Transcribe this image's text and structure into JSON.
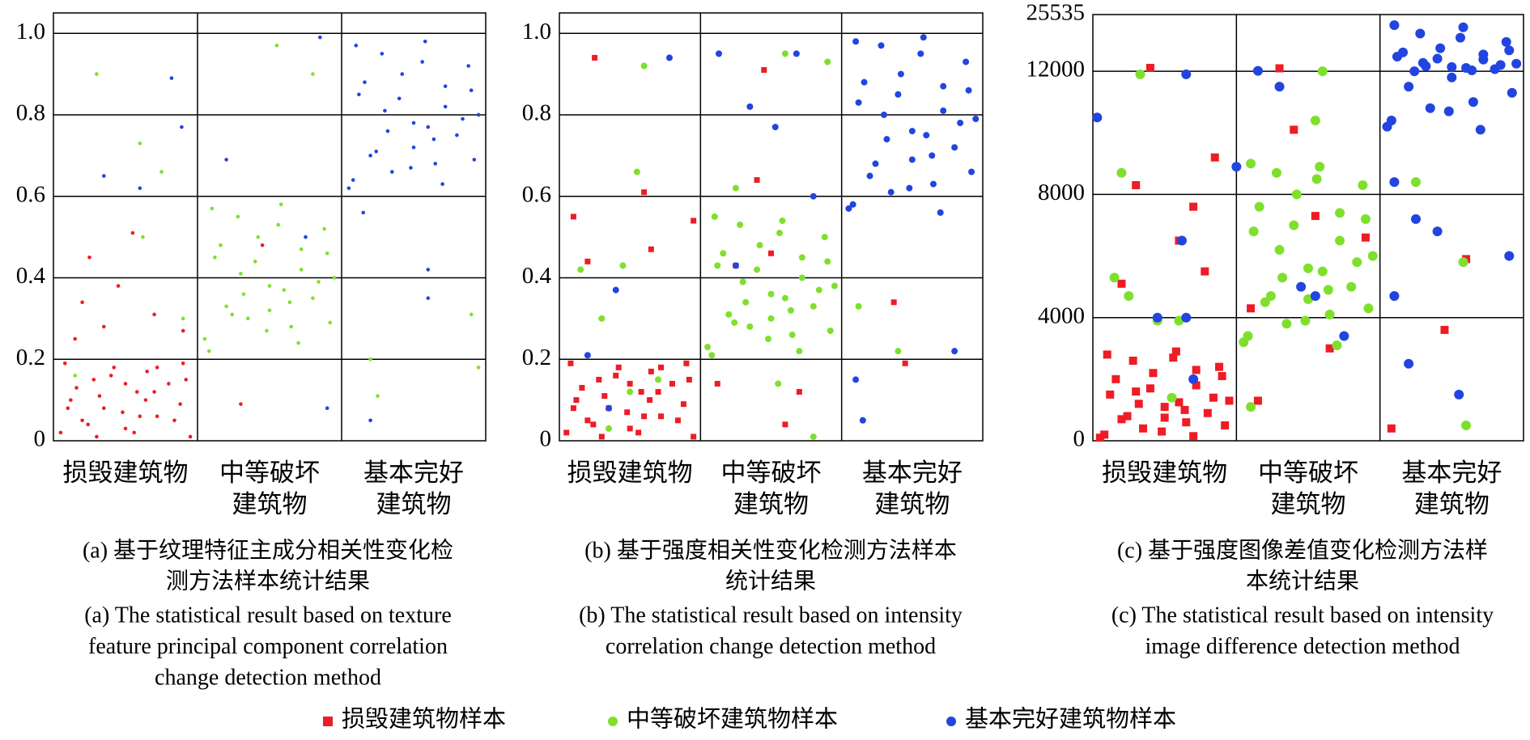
{
  "chart_data": [
    {
      "type": "scatter",
      "categories": [
        [
          "损毁建筑物"
        ],
        [
          "中等破坏",
          "建筑物"
        ],
        [
          "基本完好",
          "建筑物"
        ]
      ],
      "caption_zh": [
        "(a) 基于纹理特征主成分相关性变化检",
        "测方法样本统计结果"
      ],
      "caption_en": [
        "(a) The statistical result based on texture",
        "feature principal component correlation",
        "change detection method"
      ],
      "xlim": [
        0,
        3
      ],
      "ylim": [
        0,
        1.05
      ],
      "yticks": [
        0,
        0.2,
        0.4,
        0.6,
        0.8,
        {
          "value": 1,
          "label": "1.0"
        }
      ],
      "grid": true,
      "series": [
        {
          "name": "损毁建筑物样本",
          "color": "#ee1c25",
          "marker": "circle",
          "x": [
            0.05,
            0.12,
            0.2,
            0.28,
            0.35,
            0.42,
            0.5,
            0.58,
            0.65,
            0.72,
            0.8,
            0.88,
            0.95,
            0.08,
            0.16,
            0.24,
            0.32,
            0.4,
            0.48,
            0.56,
            0.64,
            0.72,
            0.84,
            0.92,
            0.1,
            0.3,
            0.5,
            0.7,
            0.9,
            0.6,
            0.2,
            0.45,
            0.7,
            0.9,
            0.15,
            0.55,
            1.3,
            1.45,
            0.35,
            0.25
          ],
          "values": [
            0.02,
            0.1,
            0.05,
            0.15,
            0.08,
            0.18,
            0.03,
            0.12,
            0.17,
            0.06,
            0.14,
            0.09,
            0.01,
            0.19,
            0.13,
            0.04,
            0.11,
            0.16,
            0.07,
            0.02,
            0.1,
            0.18,
            0.05,
            0.15,
            0.08,
            0.01,
            0.14,
            0.12,
            0.19,
            0.06,
            0.34,
            0.38,
            0.31,
            0.27,
            0.25,
            0.51,
            0.09,
            0.48,
            0.28,
            0.45
          ]
        },
        {
          "name": "中等破坏建筑物样本",
          "color": "#7ee02c",
          "marker": "circle",
          "x": [
            1.05,
            1.12,
            1.2,
            1.28,
            1.35,
            1.42,
            1.5,
            1.58,
            1.65,
            1.72,
            1.8,
            1.88,
            1.95,
            1.08,
            1.16,
            1.24,
            1.32,
            1.4,
            1.48,
            1.56,
            1.64,
            1.72,
            1.84,
            1.92,
            1.1,
            1.3,
            1.5,
            1.7,
            1.9,
            1.6,
            0.3,
            0.6,
            0.75,
            0.62,
            1.55,
            2.9,
            2.95,
            2.2,
            1.8,
            2.25,
            0.15,
            0.9
          ],
          "values": [
            0.25,
            0.45,
            0.33,
            0.55,
            0.3,
            0.5,
            0.38,
            0.58,
            0.28,
            0.42,
            0.35,
            0.52,
            0.4,
            0.22,
            0.48,
            0.31,
            0.36,
            0.44,
            0.27,
            0.53,
            0.34,
            0.47,
            0.39,
            0.29,
            0.57,
            0.41,
            0.32,
            0.24,
            0.46,
            0.37,
            0.9,
            0.73,
            0.66,
            0.5,
            0.97,
            0.31,
            0.18,
            0.2,
            0.9,
            0.11,
            0.16,
            0.3
          ]
        },
        {
          "name": "基本完好建筑物样本",
          "color": "#2244e0",
          "marker": "circle",
          "x": [
            2.05,
            2.12,
            2.2,
            2.28,
            2.35,
            2.42,
            2.5,
            2.58,
            2.65,
            2.72,
            2.8,
            2.88,
            2.95,
            2.08,
            2.16,
            2.24,
            2.32,
            2.4,
            2.48,
            2.56,
            2.64,
            2.72,
            2.84,
            2.92,
            2.1,
            2.3,
            2.5,
            2.7,
            2.9,
            2.6,
            0.82,
            0.35,
            0.89,
            0.6,
            1.2,
            1.85,
            1.9,
            2.6,
            2.2,
            2.6,
            2.15,
            1.75
          ],
          "values": [
            0.62,
            0.85,
            0.7,
            0.95,
            0.66,
            0.9,
            0.78,
            0.98,
            0.68,
            0.82,
            0.75,
            0.92,
            0.8,
            0.64,
            0.88,
            0.71,
            0.76,
            0.84,
            0.67,
            0.93,
            0.74,
            0.87,
            0.79,
            0.69,
            0.97,
            0.81,
            0.72,
            0.63,
            0.86,
            0.77,
            0.89,
            0.65,
            0.77,
            0.62,
            0.69,
            0.99,
            0.08,
            0.35,
            0.05,
            0.42,
            0.56,
            0.5
          ]
        }
      ]
    },
    {
      "type": "scatter",
      "categories": [
        [
          "损毁建筑物"
        ],
        [
          "中等破坏",
          "建筑物"
        ],
        [
          "基本完好",
          "建筑物"
        ]
      ],
      "caption_zh": [
        "(b) 基于强度相关性变化检测方法样本",
        "统计结果"
      ],
      "caption_en": [
        "(b) The statistical result based on intensity",
        "correlation change detection method"
      ],
      "xlim": [
        0,
        3
      ],
      "ylim": [
        0,
        1.05
      ],
      "yticks": [
        0,
        0.2,
        0.4,
        0.6,
        0.8,
        {
          "value": 1,
          "label": "1.0"
        }
      ],
      "grid": true,
      "series": [
        {
          "name": "损毁建筑物样本",
          "color": "#ee1c25",
          "marker": "square",
          "x": [
            0.05,
            0.12,
            0.2,
            0.28,
            0.35,
            0.42,
            0.5,
            0.58,
            0.65,
            0.72,
            0.8,
            0.88,
            0.95,
            0.08,
            0.16,
            0.24,
            0.32,
            0.4,
            0.48,
            0.56,
            0.64,
            0.72,
            0.84,
            0.92,
            0.1,
            0.3,
            0.5,
            0.7,
            0.9,
            0.6,
            0.25,
            0.1,
            0.6,
            0.65,
            0.2,
            0.95,
            1.25,
            1.45,
            1.4,
            1.12,
            1.7,
            1.5,
            2.37,
            2.45,
            1.6
          ],
          "values": [
            0.02,
            0.1,
            0.05,
            0.15,
            0.08,
            0.18,
            0.03,
            0.12,
            0.17,
            0.06,
            0.14,
            0.09,
            0.01,
            0.19,
            0.13,
            0.04,
            0.11,
            0.16,
            0.07,
            0.02,
            0.1,
            0.18,
            0.05,
            0.15,
            0.08,
            0.01,
            0.14,
            0.12,
            0.19,
            0.06,
            0.94,
            0.55,
            0.61,
            0.47,
            0.44,
            0.54,
            0.43,
            0.91,
            0.64,
            0.14,
            0.12,
            0.46,
            0.34,
            0.19,
            0.04
          ]
        },
        {
          "name": "中等破坏建筑物样本",
          "color": "#7ee02c",
          "marker": "circle",
          "x": [
            1.05,
            1.12,
            1.2,
            1.28,
            1.35,
            1.42,
            1.5,
            1.58,
            1.65,
            1.72,
            1.8,
            1.88,
            1.95,
            1.08,
            1.16,
            1.24,
            1.32,
            1.4,
            1.48,
            1.56,
            1.64,
            1.72,
            1.84,
            1.92,
            1.1,
            1.3,
            1.5,
            1.7,
            1.9,
            1.6,
            0.15,
            0.6,
            0.55,
            0.45,
            0.3,
            0.7,
            1.9,
            1.6,
            1.25,
            1.55,
            1.8,
            2.4,
            2.12,
            0.35,
            0.5
          ],
          "values": [
            0.23,
            0.43,
            0.31,
            0.53,
            0.28,
            0.48,
            0.36,
            0.54,
            0.26,
            0.4,
            0.33,
            0.5,
            0.38,
            0.21,
            0.46,
            0.29,
            0.34,
            0.42,
            0.25,
            0.51,
            0.32,
            0.45,
            0.37,
            0.27,
            0.55,
            0.39,
            0.3,
            0.22,
            0.44,
            0.35,
            0.42,
            0.92,
            0.66,
            0.43,
            0.3,
            0.15,
            0.93,
            0.95,
            0.62,
            0.14,
            0.01,
            0.22,
            0.33,
            0.03,
            0.12
          ]
        },
        {
          "name": "基本完好建筑物样本",
          "color": "#2244e0",
          "marker": "circle",
          "x": [
            2.05,
            2.12,
            2.2,
            2.28,
            2.35,
            2.42,
            2.5,
            2.58,
            2.65,
            2.72,
            2.8,
            2.88,
            2.95,
            2.08,
            2.16,
            2.24,
            2.32,
            2.4,
            2.48,
            2.56,
            2.64,
            2.72,
            2.84,
            2.92,
            2.1,
            2.3,
            2.5,
            2.7,
            2.9,
            2.6,
            0.78,
            1.13,
            1.35,
            1.53,
            1.68,
            1.25,
            0.4,
            0.35,
            1.8,
            2.1,
            2.15,
            2.8,
            0.2
          ],
          "values": [
            0.57,
            0.83,
            0.65,
            0.97,
            0.61,
            0.9,
            0.76,
            0.99,
            0.63,
            0.81,
            0.72,
            0.93,
            0.79,
            0.58,
            0.88,
            0.68,
            0.74,
            0.85,
            0.62,
            0.95,
            0.7,
            0.87,
            0.78,
            0.66,
            0.98,
            0.8,
            0.69,
            0.56,
            0.86,
            0.75,
            0.94,
            0.95,
            0.82,
            0.77,
            0.95,
            0.43,
            0.37,
            0.08,
            0.6,
            0.15,
            0.05,
            0.22,
            0.21
          ]
        }
      ]
    },
    {
      "type": "scatter",
      "categories": [
        [
          "损毁建筑物"
        ],
        [
          "中等破坏",
          "建筑物"
        ],
        [
          "基本完好",
          "建筑物"
        ]
      ],
      "caption_zh": [
        "(c) 基于强度图像差值变化检测方法样",
        "本统计结果"
      ],
      "caption_en": [
        "(c) The statistical result based on intensity",
        "image difference detection method"
      ],
      "xlim": [
        0,
        3
      ],
      "ylim": [
        0,
        25535
      ],
      "broken_axis": true,
      "yticks": [
        0,
        4000,
        8000,
        12000,
        25535
      ],
      "grid": true,
      "series": [
        {
          "name": "损毁建筑物样本",
          "color": "#ee1c25",
          "marker": "square",
          "x": [
            0.05,
            0.12,
            0.2,
            0.28,
            0.35,
            0.42,
            0.5,
            0.58,
            0.65,
            0.72,
            0.8,
            0.88,
            0.95,
            0.08,
            0.16,
            0.24,
            0.32,
            0.4,
            0.48,
            0.56,
            0.64,
            0.72,
            0.84,
            0.92,
            0.1,
            0.3,
            0.5,
            0.7,
            0.9,
            0.6,
            0.4,
            0.3,
            0.2,
            0.85,
            0.7,
            0.78,
            0.6,
            1.3,
            1.4,
            1.55,
            1.9,
            1.65,
            2.45,
            2.08,
            2.6,
            1.15,
            1.1
          ],
          "values": [
            100,
            1500,
            700,
            2600,
            400,
            2200,
            1100,
            2900,
            600,
            1800,
            900,
            2400,
            1300,
            200,
            2000,
            800,
            1200,
            1700,
            300,
            2700,
            1000,
            2300,
            1400,
            500,
            2800,
            1600,
            750,
            150,
            2100,
            1250,
            12800,
            8300,
            5100,
            9200,
            7600,
            5500,
            6500,
            12700,
            10100,
            7300,
            6600,
            3000,
            3600,
            400,
            5900,
            1300,
            4300
          ]
        },
        {
          "name": "中等破坏建筑物样本",
          "color": "#7ee02c",
          "marker": "circle",
          "x": [
            1.05,
            1.12,
            1.2,
            1.28,
            1.35,
            1.42,
            1.5,
            1.58,
            1.65,
            1.72,
            1.8,
            1.88,
            1.95,
            1.08,
            1.16,
            1.24,
            1.32,
            1.4,
            1.48,
            1.56,
            1.64,
            1.72,
            1.84,
            1.92,
            1.1,
            1.3,
            1.5,
            1.7,
            1.9,
            1.6,
            0.33,
            0.2,
            0.25,
            0.6,
            0.45,
            0.15,
            1.1,
            1.6,
            2.25,
            2.6,
            0.55,
            1.55,
            2.58
          ],
          "values": [
            3200,
            6800,
            4500,
            8700,
            3800,
            8000,
            5600,
            8900,
            4100,
            6500,
            5000,
            8300,
            6000,
            3400,
            7600,
            4700,
            5300,
            7000,
            3900,
            8500,
            4900,
            7400,
            5800,
            4300,
            9000,
            6200,
            4600,
            3100,
            7200,
            5500,
            11900,
            8700,
            4700,
            3900,
            3900,
            5300,
            1100,
            12000,
            8400,
            500,
            1400,
            10400,
            5800
          ]
        },
        {
          "name": "基本完好建筑物样本",
          "color": "#2244e0",
          "marker": "circle",
          "x": [
            2.05,
            2.12,
            2.2,
            2.28,
            2.35,
            2.42,
            2.5,
            2.58,
            2.65,
            2.72,
            2.8,
            2.88,
            2.95,
            2.08,
            2.16,
            2.24,
            2.32,
            2.4,
            2.48,
            2.56,
            2.64,
            2.72,
            2.84,
            2.92,
            2.1,
            2.3,
            2.5,
            2.7,
            2.9,
            2.6,
            0.65,
            1.0,
            1.15,
            0.62,
            0.45,
            0.7,
            1.3,
            1.45,
            1.55,
            1.75,
            2.1,
            2.25,
            2.1,
            2.4,
            2.2,
            2.55,
            2.9,
            0.03,
            0.65
          ],
          "values": [
            10200,
            15500,
            11500,
            21000,
            10800,
            17500,
            13000,
            22500,
            11000,
            14800,
            12500,
            19000,
            13800,
            10400,
            16500,
            12000,
            13200,
            15000,
            10700,
            20000,
            12200,
            16000,
            13500,
            11300,
            23000,
            14000,
            11800,
            10100,
            17000,
            12800,
            11900,
            8900,
            12100,
            6500,
            4000,
            2000,
            11500,
            5000,
            4700,
            3400,
            8400,
            7200,
            4700,
            6800,
            2500,
            1500,
            6000,
            10500,
            4000
          ]
        }
      ]
    }
  ]
}
